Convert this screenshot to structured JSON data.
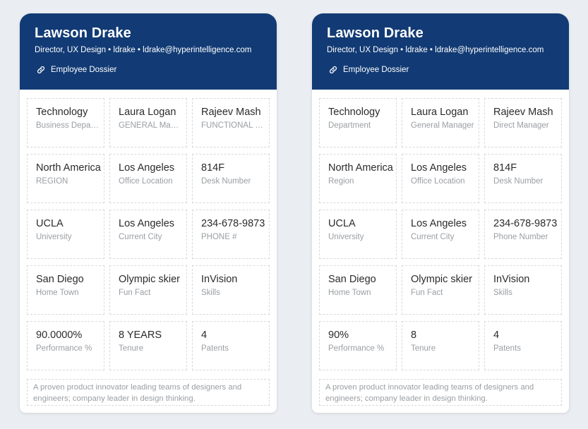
{
  "cards": [
    {
      "name": "Lawson Drake",
      "subtitle": "Director, UX Design • ldrake • ldrake@hyperintelligence.com",
      "dossier_label": "Employee Dossier",
      "rows": [
        [
          {
            "value": "Technology",
            "label": "Business Department"
          },
          {
            "value": "Laura Logan",
            "label": "GENERAL Manager"
          },
          {
            "value": "Rajeev Mash",
            "label": "FUNCTIONAL Manager"
          }
        ],
        [
          {
            "value": "North America",
            "label": "REGION"
          },
          {
            "value": "Los Angeles",
            "label": "Office Location"
          },
          {
            "value": "814F",
            "label": "Desk Number"
          }
        ],
        [
          {
            "value": "UCLA",
            "label": "University"
          },
          {
            "value": "Los Angeles",
            "label": "Current City"
          },
          {
            "value": "234-678-9873",
            "label": "PHONE #"
          }
        ],
        [
          {
            "value": "San Diego",
            "label": "Home Town"
          },
          {
            "value": "Olympic skier",
            "label": "Fun Fact"
          },
          {
            "value": "InVision",
            "label": "Skills"
          }
        ],
        [
          {
            "value": "90.0000%",
            "label": "Performance %"
          },
          {
            "value": "8 YEARS",
            "label": "Tenure"
          },
          {
            "value": "4",
            "label": "Patents"
          }
        ]
      ],
      "bio": "A proven product innovator leading teams of designers and engineers; company leader in design thinking."
    },
    {
      "name": "Lawson Drake",
      "subtitle": "Director, UX Design • ldrake • ldrake@hyperintelligence.com",
      "dossier_label": "Employee Dossier",
      "rows": [
        [
          {
            "value": "Technology",
            "label": "Department"
          },
          {
            "value": "Laura Logan",
            "label": "General Manager"
          },
          {
            "value": "Rajeev Mash",
            "label": "Direct Manager"
          }
        ],
        [
          {
            "value": "North America",
            "label": "Region"
          },
          {
            "value": "Los Angeles",
            "label": "Office Location"
          },
          {
            "value": "814F",
            "label": "Desk Number"
          }
        ],
        [
          {
            "value": "UCLA",
            "label": "University"
          },
          {
            "value": "Los Angeles",
            "label": "Current City"
          },
          {
            "value": "234-678-9873",
            "label": "Phone Number"
          }
        ],
        [
          {
            "value": "San Diego",
            "label": "Home Town"
          },
          {
            "value": "Olympic skier",
            "label": "Fun Fact"
          },
          {
            "value": "InVision",
            "label": "Skills"
          }
        ],
        [
          {
            "value": "90%",
            "label": "Performance %"
          },
          {
            "value": "8",
            "label": "Tenure"
          },
          {
            "value": "4",
            "label": "Patents"
          }
        ]
      ],
      "bio": "A proven product innovator leading teams of designers and engineers; company leader in design thinking."
    }
  ],
  "colors": {
    "header_bg": "#123b75",
    "page_bg": "#eaeef2",
    "label_gray": "#9a9ea3"
  },
  "icons": {
    "dossier": "link-icon"
  }
}
